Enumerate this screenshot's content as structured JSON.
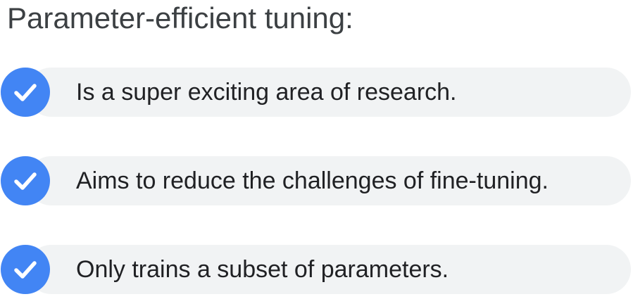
{
  "title": "Parameter-efficient tuning:",
  "items": [
    {
      "label": "Is a super exciting area of research.",
      "icon": "check-circle-icon"
    },
    {
      "label": "Aims to reduce the challenges of fine-tuning.",
      "icon": "check-circle-icon"
    },
    {
      "label": "Only trains a subset of parameters.",
      "icon": "check-circle-icon"
    }
  ],
  "colors": {
    "icon_background": "#4285f4",
    "pill_background": "#f1f3f4",
    "title_text": "#3c4043",
    "body_text": "#202124"
  }
}
